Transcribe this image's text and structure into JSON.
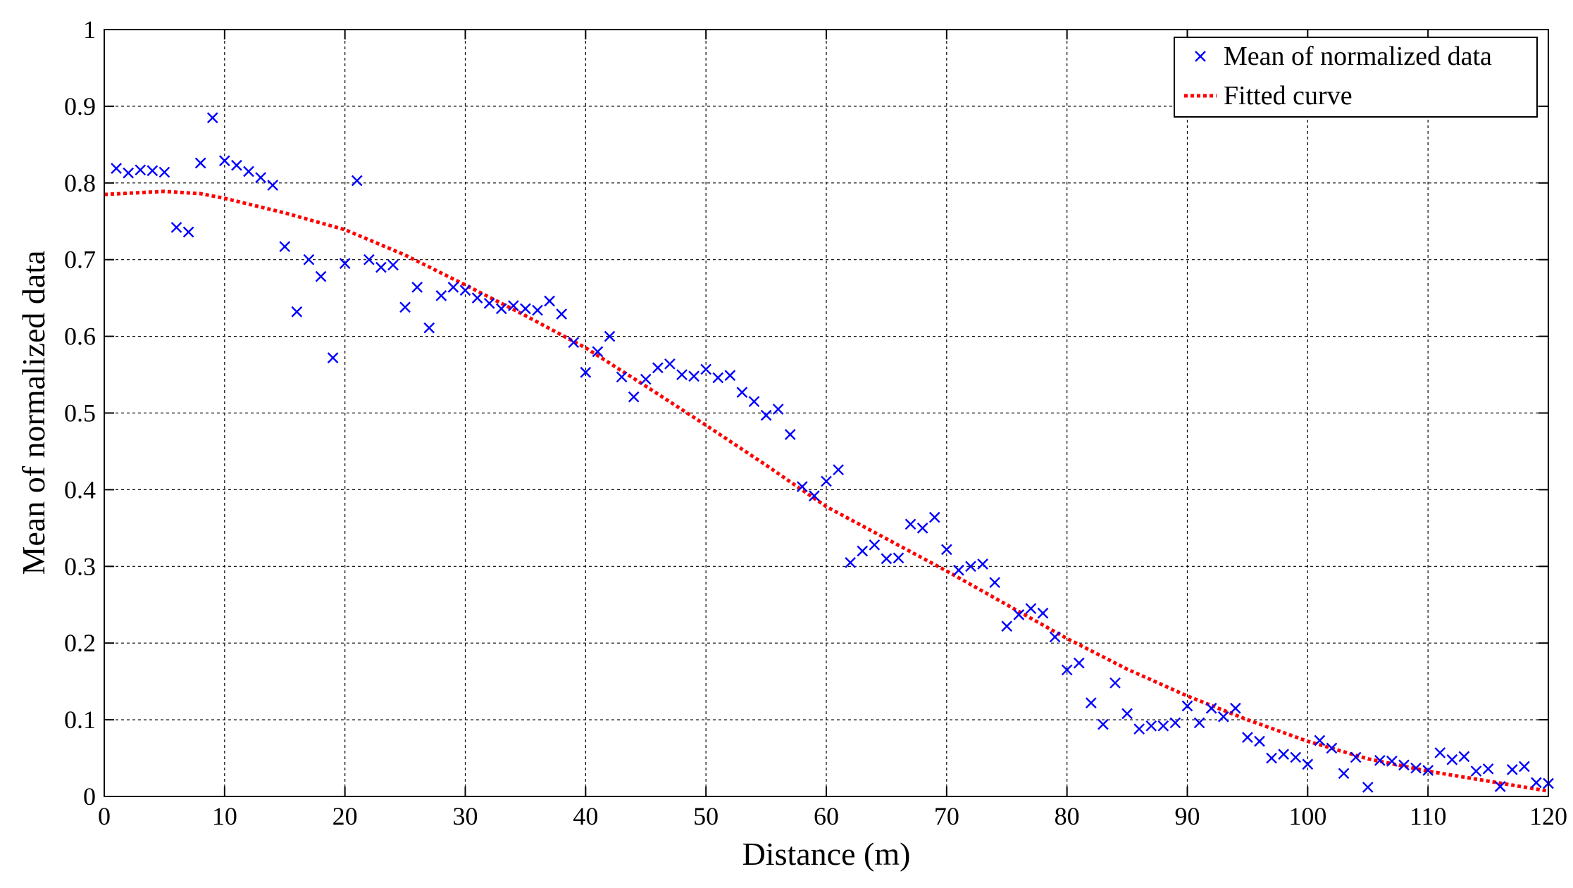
{
  "chart_data": {
    "type": "scatter",
    "title": "",
    "xlabel": "Distance (m)",
    "ylabel": "Mean of normalized data",
    "xlim": [
      0,
      120
    ],
    "ylim": [
      0,
      1
    ],
    "grid": true,
    "legend_position": "top-right",
    "x_ticks": [
      0,
      10,
      20,
      30,
      40,
      50,
      60,
      70,
      80,
      90,
      100,
      110,
      120
    ],
    "y_ticks": [
      0,
      0.1,
      0.2,
      0.3,
      0.4,
      0.5,
      0.6,
      0.7,
      0.8,
      0.9,
      1
    ],
    "x_tick_labels": [
      "0",
      "10",
      "20",
      "30",
      "40",
      "50",
      "60",
      "70",
      "80",
      "90",
      "100",
      "110",
      "120"
    ],
    "y_tick_labels": [
      "0",
      "0.1",
      "0.2",
      "0.3",
      "0.4",
      "0.5",
      "0.6",
      "0.7",
      "0.8",
      "0.9",
      "1"
    ],
    "series": [
      {
        "name": "Mean of normalized data",
        "kind": "scatter",
        "marker": "x",
        "color": "#0000ff",
        "x": [
          1,
          2,
          3,
          4,
          5,
          6,
          7,
          8,
          9,
          10,
          11,
          12,
          13,
          14,
          15,
          16,
          17,
          18,
          19,
          20,
          21,
          22,
          23,
          24,
          25,
          26,
          27,
          28,
          29,
          30,
          31,
          32,
          33,
          34,
          35,
          36,
          37,
          38,
          39,
          40,
          41,
          42,
          43,
          44,
          45,
          46,
          47,
          48,
          49,
          50,
          51,
          52,
          53,
          54,
          55,
          56,
          57,
          58,
          59,
          60,
          61,
          62,
          63,
          64,
          65,
          66,
          67,
          68,
          69,
          70,
          71,
          72,
          73,
          74,
          75,
          76,
          77,
          78,
          79,
          80,
          81,
          82,
          83,
          84,
          85,
          86,
          87,
          88,
          89,
          90,
          91,
          92,
          93,
          94,
          95,
          96,
          97,
          98,
          99,
          100,
          101,
          102,
          103,
          104,
          105,
          106,
          107,
          108,
          109,
          110,
          111,
          112,
          113,
          114,
          115,
          116,
          117,
          118,
          119,
          120
        ],
        "y": [
          0.819,
          0.813,
          0.817,
          0.816,
          0.814,
          0.742,
          0.736,
          0.826,
          0.885,
          0.829,
          0.823,
          0.815,
          0.807,
          0.797,
          0.717,
          0.632,
          0.7,
          0.678,
          0.572,
          0.695,
          0.803,
          0.7,
          0.69,
          0.693,
          0.638,
          0.664,
          0.611,
          0.653,
          0.664,
          0.66,
          0.65,
          0.643,
          0.636,
          0.64,
          0.636,
          0.634,
          0.646,
          0.629,
          0.592,
          0.553,
          0.58,
          0.6,
          0.547,
          0.521,
          0.544,
          0.559,
          0.564,
          0.55,
          0.548,
          0.557,
          0.546,
          0.549,
          0.527,
          0.515,
          0.497,
          0.505,
          0.472,
          0.404,
          0.392,
          0.411,
          0.426,
          0.305,
          0.32,
          0.328,
          0.31,
          0.311,
          0.355,
          0.35,
          0.364,
          0.322,
          0.295,
          0.3,
          0.303,
          0.279,
          0.222,
          0.237,
          0.245,
          0.239,
          0.208,
          0.165,
          0.174,
          0.122,
          0.094,
          0.148,
          0.108,
          0.088,
          0.092,
          0.092,
          0.096,
          0.118,
          0.096,
          0.115,
          0.104,
          0.115,
          0.077,
          0.072,
          0.05,
          0.055,
          0.051,
          0.042,
          0.073,
          0.063,
          0.03,
          0.051,
          0.012,
          0.047,
          0.046,
          0.041,
          0.037,
          0.034,
          0.057,
          0.048,
          0.052,
          0.033,
          0.036,
          0.013,
          0.035,
          0.039,
          0.018,
          0.017
        ]
      },
      {
        "name": "Fitted curve",
        "kind": "line",
        "style": "dotted",
        "color": "#ff0000",
        "x": [
          0,
          5,
          8,
          10,
          15,
          20,
          25,
          30,
          35,
          40,
          45,
          50,
          55,
          60,
          65,
          70,
          75,
          80,
          85,
          90,
          95,
          100,
          105,
          110,
          115,
          120
        ],
        "y": [
          0.785,
          0.789,
          0.786,
          0.78,
          0.761,
          0.739,
          0.706,
          0.667,
          0.627,
          0.585,
          0.535,
          0.484,
          0.432,
          0.378,
          0.336,
          0.294,
          0.25,
          0.206,
          0.166,
          0.131,
          0.1,
          0.072,
          0.049,
          0.033,
          0.02,
          0.007
        ]
      }
    ]
  }
}
